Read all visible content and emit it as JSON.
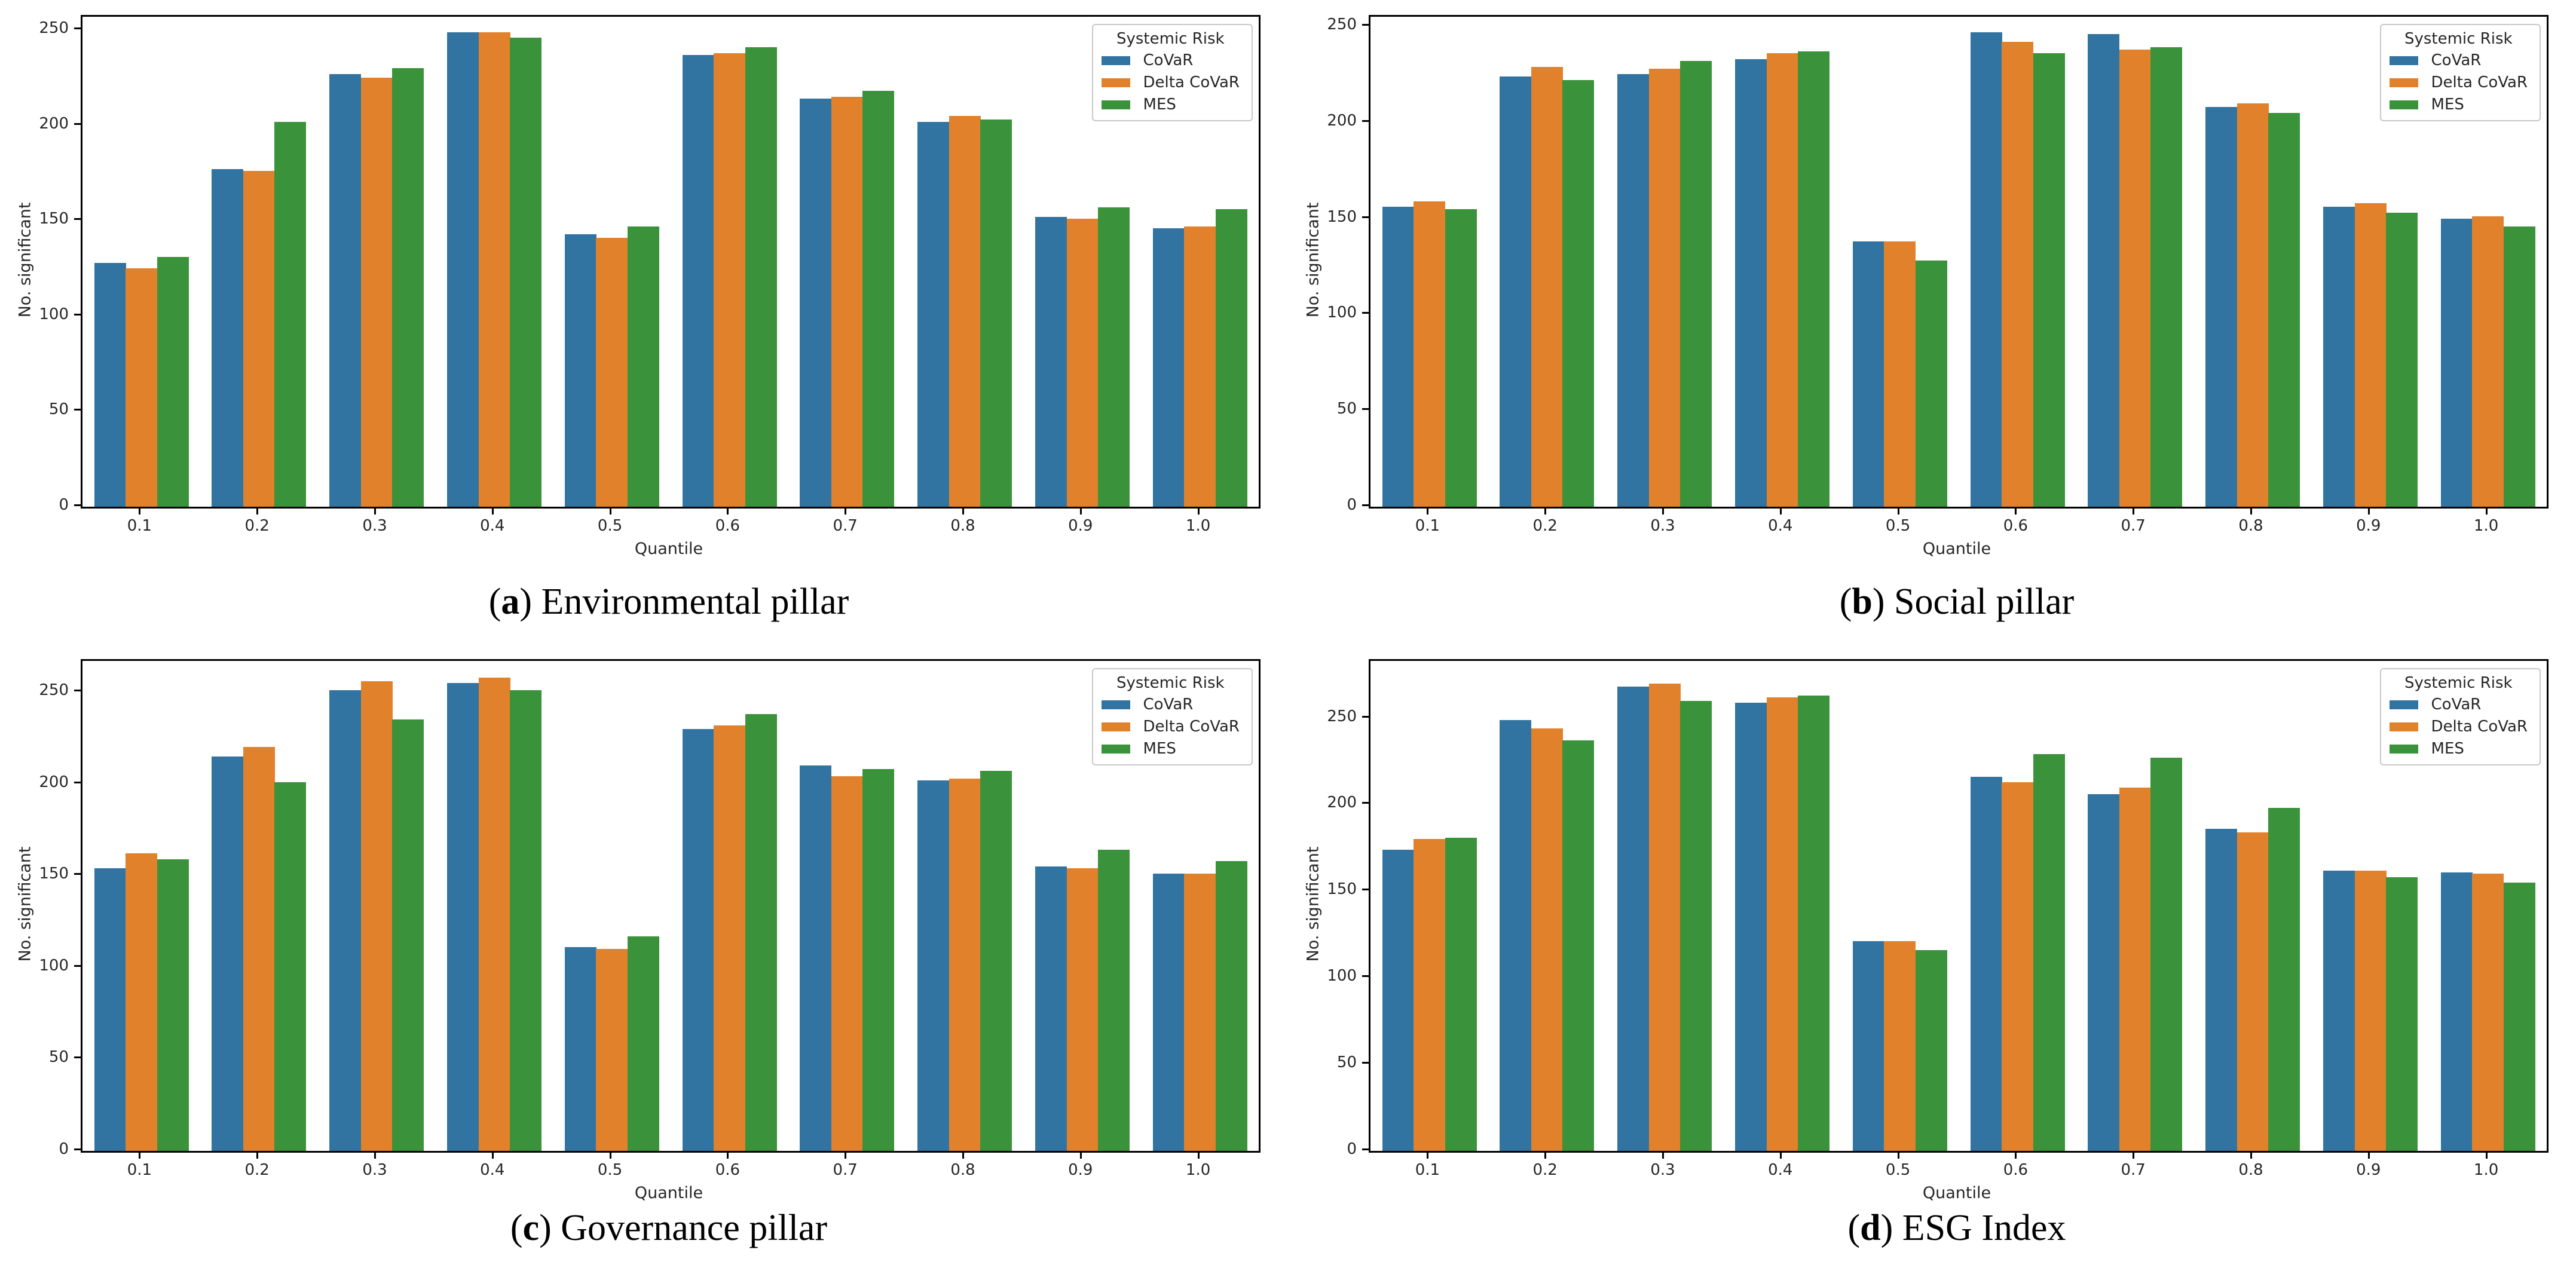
{
  "figure": {
    "background": "#ffffff",
    "text_color": "#262626",
    "spine_color": "#000000"
  },
  "colors": {
    "covar": "#3274a1",
    "delta_covar": "#e1812c",
    "mes": "#3a923a"
  },
  "chart_data": [
    {
      "type": "bar",
      "panel": "a",
      "caption": {
        "open": "(",
        "letter": "a",
        "close": ")",
        "text": " Environmental pillar"
      },
      "xlabel": "Quantile",
      "ylabel": "No. significant",
      "legend": {
        "title": "Systemic Risk",
        "position": "upper right"
      },
      "grid": false,
      "categories": [
        "0.1",
        "0.2",
        "0.3",
        "0.4",
        "0.5",
        "0.6",
        "0.7",
        "0.8",
        "0.9",
        "1.0"
      ],
      "yticks": [
        0,
        50,
        100,
        150,
        200,
        250
      ],
      "ylim": [
        0,
        257
      ],
      "series": [
        {
          "name": "CoVaR",
          "color": "#3274a1",
          "values": [
            128,
            177,
            227,
            249,
            143,
            237,
            214,
            202,
            152,
            146
          ]
        },
        {
          "name": "Delta CoVaR",
          "color": "#e1812c",
          "values": [
            125,
            176,
            225,
            249,
            141,
            238,
            215,
            205,
            151,
            147
          ]
        },
        {
          "name": "MES",
          "color": "#3a923a",
          "values": [
            131,
            202,
            230,
            246,
            147,
            241,
            218,
            203,
            157,
            156
          ]
        }
      ]
    },
    {
      "type": "bar",
      "panel": "b",
      "caption": {
        "open": "(",
        "letter": "b",
        "close": ")",
        "text": " Social pillar"
      },
      "xlabel": "Quantile",
      "ylabel": "No. significant",
      "legend": {
        "title": "Systemic Risk",
        "position": "upper right"
      },
      "grid": false,
      "categories": [
        "0.1",
        "0.2",
        "0.3",
        "0.4",
        "0.5",
        "0.6",
        "0.7",
        "0.8",
        "0.9",
        "1.0"
      ],
      "yticks": [
        0,
        50,
        100,
        150,
        200,
        250
      ],
      "ylim": [
        0,
        255
      ],
      "series": [
        {
          "name": "CoVaR",
          "color": "#3274a1",
          "values": [
            156,
            224,
            225,
            233,
            138,
            247,
            246,
            208,
            156,
            150
          ]
        },
        {
          "name": "Delta CoVaR",
          "color": "#e1812c",
          "values": [
            159,
            229,
            228,
            236,
            138,
            242,
            238,
            210,
            158,
            151
          ]
        },
        {
          "name": "MES",
          "color": "#3a923a",
          "values": [
            155,
            222,
            232,
            237,
            128,
            236,
            239,
            205,
            153,
            146
          ]
        }
      ]
    },
    {
      "type": "bar",
      "panel": "c",
      "caption": {
        "open": "(",
        "letter": "c",
        "close": ")",
        "text": " Governance pillar"
      },
      "xlabel": "Quantile",
      "ylabel": "No. significant",
      "legend": {
        "title": "Systemic Risk",
        "position": "upper right"
      },
      "grid": false,
      "categories": [
        "0.1",
        "0.2",
        "0.3",
        "0.4",
        "0.5",
        "0.6",
        "0.7",
        "0.8",
        "0.9",
        "1.0"
      ],
      "yticks": [
        0,
        50,
        100,
        150,
        200,
        250
      ],
      "ylim": [
        0,
        267
      ],
      "series": [
        {
          "name": "CoVaR",
          "color": "#3274a1",
          "values": [
            154,
            215,
            251,
            255,
            111,
            230,
            210,
            202,
            155,
            151
          ]
        },
        {
          "name": "Delta CoVaR",
          "color": "#e1812c",
          "values": [
            162,
            220,
            256,
            258,
            110,
            232,
            204,
            203,
            154,
            151
          ]
        },
        {
          "name": "MES",
          "color": "#3a923a",
          "values": [
            159,
            201,
            235,
            251,
            117,
            238,
            208,
            207,
            164,
            158
          ]
        }
      ]
    },
    {
      "type": "bar",
      "panel": "d",
      "caption": {
        "open": "(",
        "letter": "d",
        "close": ")",
        "text": " ESG Index"
      },
      "xlabel": "Quantile",
      "ylabel": "No. significant",
      "legend": {
        "title": "Systemic Risk",
        "position": "upper right"
      },
      "grid": false,
      "categories": [
        "0.1",
        "0.2",
        "0.3",
        "0.4",
        "0.5",
        "0.6",
        "0.7",
        "0.8",
        "0.9",
        "1.0"
      ],
      "yticks": [
        0,
        50,
        100,
        150,
        200,
        250
      ],
      "ylim": [
        0,
        283
      ],
      "series": [
        {
          "name": "CoVaR",
          "color": "#3274a1",
          "values": [
            174,
            249,
            268,
            259,
            121,
            216,
            206,
            186,
            162,
            161
          ]
        },
        {
          "name": "Delta CoVaR",
          "color": "#e1812c",
          "values": [
            180,
            244,
            270,
            262,
            121,
            213,
            210,
            184,
            162,
            160
          ]
        },
        {
          "name": "MES",
          "color": "#3a923a",
          "values": [
            181,
            237,
            260,
            263,
            116,
            229,
            227,
            198,
            158,
            155
          ]
        }
      ]
    }
  ]
}
